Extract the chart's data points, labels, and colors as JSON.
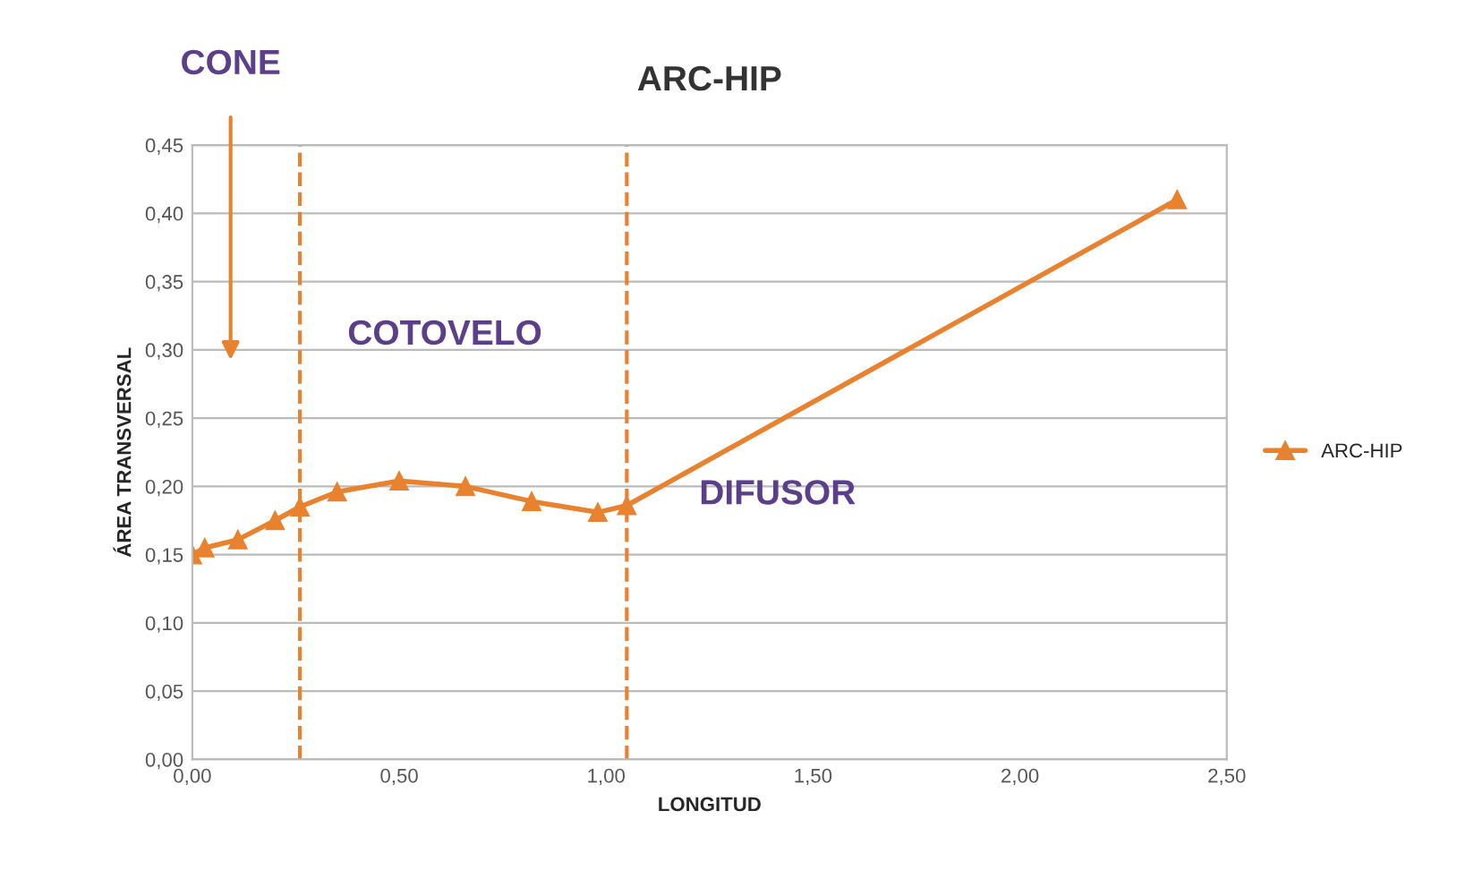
{
  "chart_data": {
    "type": "line",
    "title": "ARC-HIP",
    "xlabel": "LONGITUD",
    "ylabel": "ÁREA TRANSVERSAL",
    "series": [
      {
        "name": "ARC-HIP",
        "color": "#e8822e",
        "x": [
          0.0,
          0.03,
          0.11,
          0.2,
          0.26,
          0.35,
          0.5,
          0.66,
          0.82,
          0.98,
          1.05,
          2.38
        ],
        "values": [
          0.15,
          0.155,
          0.161,
          0.175,
          0.185,
          0.196,
          0.204,
          0.2,
          0.189,
          0.181,
          0.186,
          0.41
        ]
      }
    ],
    "xlim": [
      0,
      2.5
    ],
    "xticks": [
      {
        "value": 0,
        "label": "0,00"
      },
      {
        "value": 0.5,
        "label": "0,50"
      },
      {
        "value": 1,
        "label": "1,00"
      },
      {
        "value": 1.5,
        "label": "1,50"
      },
      {
        "value": 2,
        "label": "2,00"
      },
      {
        "value": 2.5,
        "label": "2,50"
      }
    ],
    "ylim": [
      0,
      0.45
    ],
    "yticks": [
      {
        "value": 0,
        "label": "0,00"
      },
      {
        "value": 0.05,
        "label": "0,05"
      },
      {
        "value": 0.1,
        "label": "0,10"
      },
      {
        "value": 0.15,
        "label": "0,15"
      },
      {
        "value": 0.2,
        "label": "0,20"
      },
      {
        "value": 0.25,
        "label": "0,25"
      },
      {
        "value": 0.3,
        "label": "0,30"
      },
      {
        "value": 0.35,
        "label": "0,35"
      },
      {
        "value": 0.4,
        "label": "0,40"
      },
      {
        "value": 0.45,
        "label": "0,45"
      }
    ],
    "grid": "y",
    "legend": "right",
    "marker": "triangle",
    "line_style": "solid",
    "ref_lines": [
      {
        "axis": "x",
        "value": 0.26,
        "color": "#e8822e",
        "line_style": "dashed"
      },
      {
        "axis": "x",
        "value": 1.05,
        "color": "#e8822e",
        "line_style": "dashed"
      }
    ],
    "annotations": [
      "CONE",
      "COTOVELO",
      "DIFUSOR"
    ]
  }
}
